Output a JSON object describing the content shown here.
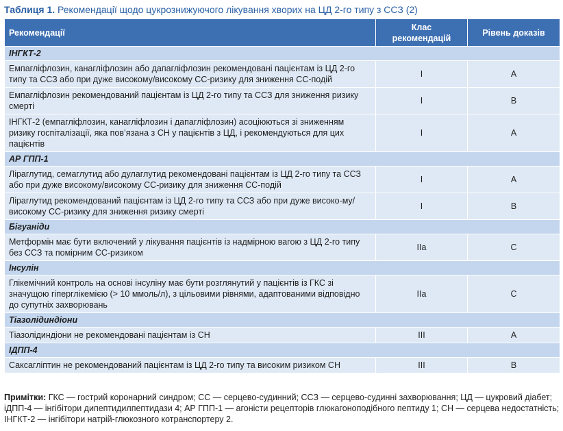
{
  "title": {
    "label": "Таблиця 1.",
    "text": "Рекомендації щодо цукрознижуючого лікування хворих на ЦД 2-го типу з ССЗ (2)"
  },
  "header": {
    "col1": "Рекомендації",
    "col2_line1": "Клас",
    "col2_line2": "рекомендацій",
    "col3": "Рівень доказів"
  },
  "sections": [
    {
      "title": "ІНГКТ-2",
      "rows": [
        {
          "text": "Емпагліфлозин, канагліфлозин або дапагліфлозин рекомендовані пацієнтам із ЦД 2-го типу та ССЗ або при дуже високому/високому СС-ризику для зниження СС-подій",
          "cls": "I",
          "lvl": "A"
        },
        {
          "text": "Емпагліфлозин рекомендований пацієнтам із ЦД 2-го типу та ССЗ для зниження ризику смерті",
          "cls": "I",
          "lvl": "B"
        },
        {
          "text": "ІНГКТ-2 (емпагліфлозин, канагліфлозин і дапагліфлозин) асоціюються зі зниженням ризику госпіталізації, яка пов’язана з СН у пацієнтів з ЦД, і рекомендуються для цих пацієнтів",
          "cls": "I",
          "lvl": "A"
        }
      ]
    },
    {
      "title": "АР ГПП-1",
      "rows": [
        {
          "text": "Ліраглутид, семаглутид або дулаглутид рекомендовані пацієнтам із ЦД 2-го типу та ССЗ або при дуже високому/високому СС-ризику для зниження СС-подій",
          "cls": "I",
          "lvl": "A"
        },
        {
          "text": "Ліраглутид рекомендований пацієнтам із ЦД 2-го типу та ССЗ або при дуже високо-му/високому СС-ризику для зниження ризику смерті",
          "cls": "I",
          "lvl": "B"
        }
      ]
    },
    {
      "title": "Бігуаніди",
      "rows": [
        {
          "text": "Метформін має бути включений у лікування пацієнтів із надмірною вагою з ЦД 2-го типу без ССЗ та помірним СС-ризиком",
          "cls": "IIa",
          "lvl": "C"
        }
      ]
    },
    {
      "title": "Інсулін",
      "rows": [
        {
          "text": "Глікемічний контроль на основі інсуліну має бути розглянутий у пацієнтів із ГКС зі значущою гіперглікемією (> 10 ммоль/л), з цільовими рівнями, адаптованими відповідно до супутніх захворювань",
          "cls": "IIa",
          "lvl": "C"
        }
      ]
    },
    {
      "title": "Тіазолідиндіони",
      "rows": [
        {
          "text": "Тіазолідиндіони не рекомендовані пацієнтам із СН",
          "cls": "III",
          "lvl": "A"
        }
      ]
    },
    {
      "title": "ІДПП-4",
      "rows": [
        {
          "text": "Саксагліптин не рекомендований пацієнтам із ЦД 2-го типу та високим ризиком СН",
          "cls": "III",
          "lvl": "B"
        }
      ]
    }
  ],
  "notes": {
    "label": "Примітки:",
    "text": "ГКС — гострий коронарний синдром; СС — серцево-судинний; ССЗ — серцево-судинні захворювання; ЦД — цукровий діабет; іДПП-4 — інгібітори дипептидилпептидази 4; АР ГПП-1 — агоністи рецепторів глюкагоноподібного пептиду 1; СН — серцева недостатність; ІНГКТ-2 — інгібітори натрій-глюкозного котранспортеру 2."
  }
}
